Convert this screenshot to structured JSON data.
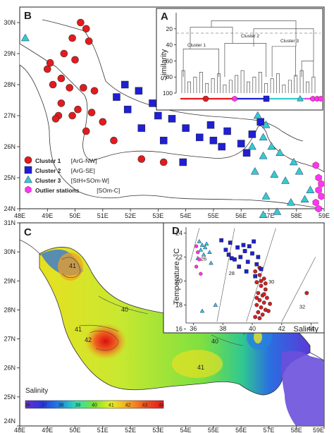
{
  "colors": {
    "cluster1": "#e41a1c",
    "cluster2": "#1f1fd6",
    "cluster3": "#33cccc",
    "outlier": "#ff33ff",
    "land": "#ffffff",
    "sea": "#ffffff"
  },
  "panelB": {
    "label": "B",
    "xticks": [
      "48E",
      "49E",
      "50E",
      "51E",
      "52E",
      "53E",
      "54E",
      "55E",
      "56E",
      "57E",
      "58E",
      "59E"
    ],
    "yticks": [
      "30N",
      "29N",
      "28N",
      "27N",
      "26N",
      "25N",
      "24N"
    ],
    "legend": [
      {
        "text": "Cluster 1",
        "sub": "[ArG-NW]",
        "marker": "circle",
        "color": "#e41a1c"
      },
      {
        "text": "Cluster 2",
        "sub": "[ArG-SE]",
        "marker": "square",
        "color": "#1f1fd6"
      },
      {
        "text": "Cluster 3",
        "sub": "[StH+SOm-W]",
        "marker": "triangle",
        "color": "#33cccc"
      },
      {
        "text": "Outlier stations",
        "sub": "[SOm-C]",
        "marker": "hexagon",
        "color": "#ff33ff"
      }
    ]
  },
  "panelA": {
    "label": "A",
    "ylabel": "Similarity",
    "yticks": [
      "20",
      "40",
      "60",
      "80",
      "100"
    ],
    "cluster_labels": [
      "Cluster 1",
      "Cluster 2",
      "Cluster 3"
    ]
  },
  "panelC": {
    "label": "C",
    "xticks": [
      "48E",
      "49E",
      "50E",
      "51E",
      "52E",
      "53E",
      "54E",
      "55E",
      "56E",
      "57E",
      "58E",
      "59E"
    ],
    "yticks": [
      "31N",
      "30N",
      "29N",
      "28N",
      "27N",
      "26N",
      "25N",
      "24N"
    ],
    "contour_labels": [
      "41",
      "40",
      "41",
      "42",
      "40",
      "41"
    ],
    "colorbar_title": "Salinity",
    "colorbar_ticks": [
      "36",
      "37",
      "38",
      "39",
      "40",
      "41",
      "42",
      "43",
      "44"
    ],
    "colorbar_colors": [
      "#6b2fd0",
      "#2a35e0",
      "#1f86e6",
      "#2fe0b0",
      "#7de030",
      "#e8f020",
      "#f5a020",
      "#f05020",
      "#e01818"
    ]
  },
  "panelD": {
    "label": "D",
    "ylabel": "Temperature, °C",
    "xlabel": "Salinity",
    "xticks": [
      "36",
      "38",
      "40",
      "42",
      "44"
    ],
    "yticks": [
      "16",
      "18",
      "20",
      "22",
      "24"
    ],
    "isopycnal_labels": [
      "26",
      "28",
      "30",
      "32"
    ]
  },
  "chart_data": [
    {
      "type": "scatter",
      "panel": "B",
      "xlim": [
        48,
        59
      ],
      "ylim": [
        24,
        30.5
      ],
      "series": [
        {
          "name": "Cluster 1 [ArG-NW]",
          "x": [
            50.2,
            50.4,
            49.9,
            50.5,
            49.6,
            49.1,
            50.0,
            49.0,
            49.5,
            49.2,
            49.8,
            50.3,
            50.7,
            49.5,
            50.1,
            49.4,
            49.9,
            50.6,
            51.0,
            49.3,
            50.4,
            51.4,
            52.4,
            53.2
          ],
          "y": [
            30.0,
            29.8,
            29.5,
            29.4,
            29.0,
            28.7,
            28.8,
            28.5,
            28.2,
            28.0,
            27.9,
            27.9,
            27.8,
            27.4,
            27.2,
            27.0,
            27.0,
            27.1,
            26.8,
            26.9,
            26.5,
            26.2,
            25.6,
            25.5
          ]
        },
        {
          "name": "Cluster 2 [ArG-SE]",
          "x": [
            51.8,
            52.3,
            51.5,
            52.8,
            51.9,
            53.0,
            53.5,
            52.4,
            54.0,
            53.2,
            54.5,
            55.0,
            54.9,
            55.5,
            56.0,
            56.4,
            56.7,
            53.9,
            55.3,
            56.2
          ],
          "y": [
            28.0,
            27.8,
            27.6,
            27.4,
            27.2,
            27.0,
            26.9,
            26.6,
            26.6,
            26.2,
            26.3,
            26.2,
            26.7,
            26.5,
            26.1,
            26.4,
            26.8,
            25.5,
            26.0,
            25.8
          ]
        },
        {
          "name": "Cluster 3 [StH+SOm-W]",
          "x": [
            48.2,
            56.6,
            56.9,
            56.8,
            56.4,
            57.1,
            56.8,
            57.4,
            57.9,
            56.5,
            57.2,
            58.1,
            57.6,
            58.5,
            56.9,
            57.8,
            58.3,
            57.3,
            56.8
          ],
          "y": [
            29.5,
            27.0,
            26.7,
            26.3,
            26.0,
            26.0,
            25.7,
            25.8,
            25.5,
            25.2,
            25.1,
            25.2,
            24.9,
            24.6,
            24.4,
            24.2,
            24.3,
            23.9,
            23.8
          ]
        },
        {
          "name": "Outlier stations [SOm-C]",
          "x": [
            58.7,
            58.8,
            58.9,
            58.8,
            58.9,
            58.7,
            58.8
          ],
          "y": [
            25.4,
            25.0,
            24.8,
            24.6,
            24.4,
            24.2,
            24.0
          ]
        }
      ]
    },
    {
      "type": "heatmap",
      "panel": "C",
      "xlim": [
        48,
        59
      ],
      "ylim": [
        24,
        31
      ],
      "zlabel": "Salinity",
      "zlim": [
        36,
        44
      ],
      "contours": [
        40,
        41,
        42
      ]
    },
    {
      "type": "scatter",
      "panel": "D",
      "xlabel": "Salinity",
      "ylabel": "Temperature, °C",
      "xlim": [
        35.5,
        44.5
      ],
      "ylim": [
        16.5,
        24.5
      ],
      "isopycnals": [
        26,
        28,
        30,
        32
      ],
      "series": [
        {
          "name": "Cluster 1",
          "x": [
            40.2,
            40.5,
            40.8,
            40.3,
            40.6,
            40.9,
            40.4,
            40.7,
            41.0,
            40.5,
            40.8,
            40.3,
            40.6,
            40.9,
            41.1,
            40.4,
            40.7,
            40.2,
            40.5,
            40.8,
            43.7,
            40.6,
            40.9,
            40.3,
            41.2,
            40.5
          ],
          "y": [
            20.8,
            20.5,
            20.2,
            19.9,
            19.6,
            19.3,
            19.0,
            18.8,
            18.6,
            18.4,
            18.2,
            18.0,
            17.8,
            17.6,
            17.5,
            17.4,
            17.2,
            17.0,
            16.9,
            18.9,
            19.0,
            20.0,
            19.8,
            18.6,
            18.1,
            21.1
          ]
        },
        {
          "name": "Cluster 2",
          "x": [
            38.5,
            39.0,
            39.5,
            40.0,
            39.2,
            38.8,
            39.7,
            40.3,
            38.2,
            39.4,
            40.1,
            39.8,
            38.6,
            40.4,
            39.1,
            37.9,
            40.6,
            39.6,
            38.4,
            40.2
          ],
          "y": [
            23.2,
            22.8,
            22.5,
            22.3,
            22.0,
            21.8,
            21.6,
            21.4,
            22.6,
            23.0,
            23.3,
            22.9,
            21.9,
            22.0,
            21.2,
            23.4,
            21.0,
            20.8,
            22.2,
            20.4
          ]
        },
        {
          "name": "Cluster 3",
          "x": [
            36.4,
            36.6,
            36.8,
            36.5,
            36.9,
            37.1,
            36.7,
            36.3,
            37.2,
            37.5,
            36.6
          ],
          "y": [
            23.3,
            23.0,
            22.8,
            22.6,
            23.1,
            22.4,
            22.2,
            21.9,
            21.5,
            18.0,
            17.5
          ]
        },
        {
          "name": "Outlier stations",
          "x": [
            36.2,
            36.3,
            36.4,
            36.2,
            36.5
          ],
          "y": [
            22.9,
            22.4,
            21.8,
            21.2,
            20.6
          ]
        }
      ]
    }
  ]
}
